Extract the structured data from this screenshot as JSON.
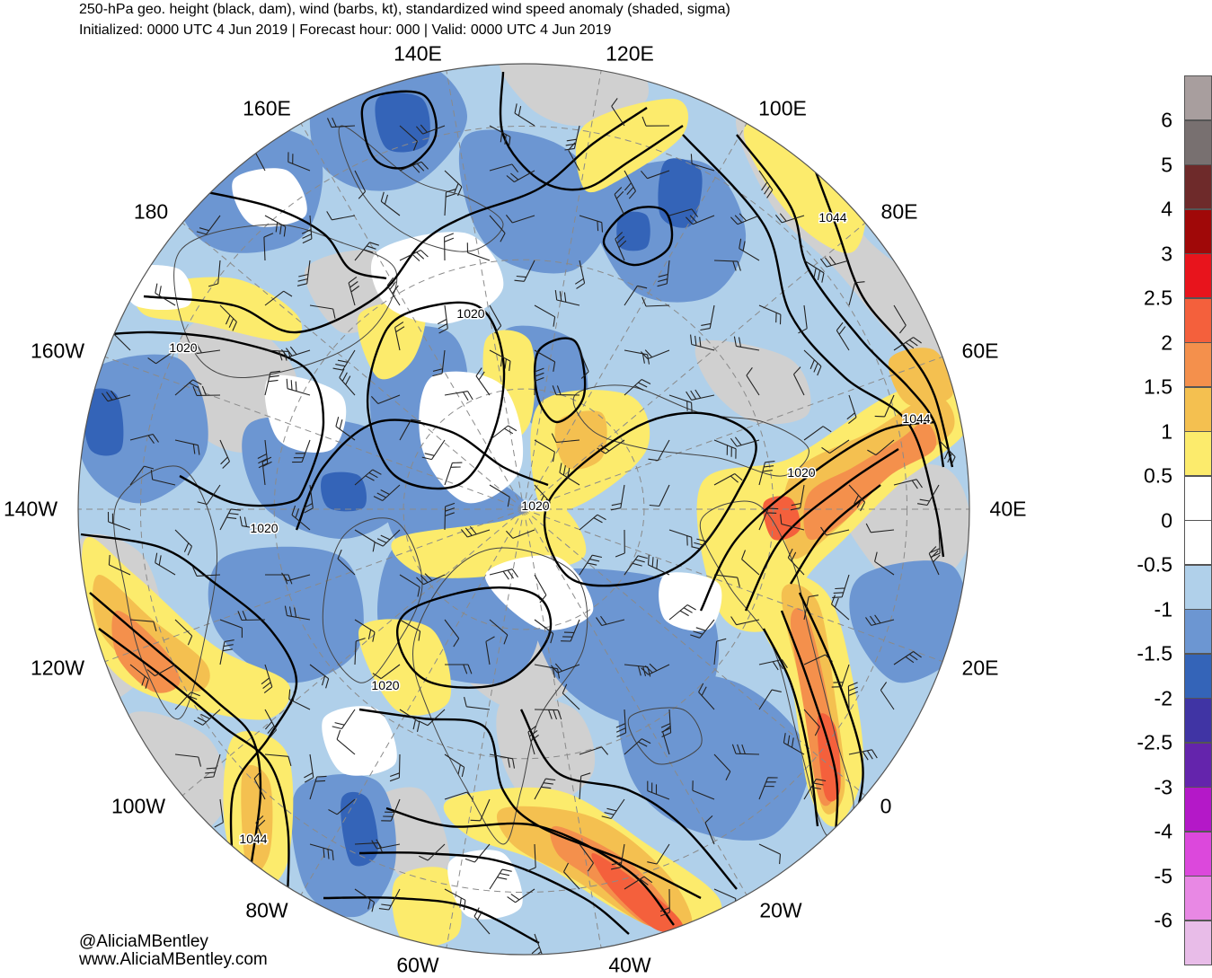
{
  "title": {
    "line1": "250-hPa geo. height (black, dam), wind (barbs, kt), standardized wind speed anomaly (shaded, sigma)",
    "line2": "Initialized: 0000 UTC 4 Jun 2019 | Forecast hour: 000 | Valid: 0000 UTC 4 Jun 2019"
  },
  "longitude_labels": [
    "140E",
    "120E",
    "160E",
    "100E",
    "180",
    "80E",
    "160W",
    "60E",
    "140W",
    "40E",
    "120W",
    "20E",
    "100W",
    "0",
    "80W",
    "20W",
    "60W",
    "40W"
  ],
  "contour_labels": [
    "1020",
    "1020",
    "1020",
    "1020",
    "1020",
    "1020",
    "1044",
    "1044",
    "1044"
  ],
  "credits": {
    "handle": "@AliciaMBentley",
    "website": "www.AliciaMBentley.com"
  },
  "colorbar": {
    "labels": [
      "6",
      "5",
      "4",
      "3",
      "2.5",
      "2",
      "1.5",
      "1",
      "0.5",
      "0",
      "-0.5",
      "-1",
      "-1.5",
      "-2",
      "-2.5",
      "-3",
      "-4",
      "-5",
      "-6"
    ],
    "colors": [
      "#a89e9e",
      "#787070",
      "#6e2a2a",
      "#a00808",
      "#e8141c",
      "#f4603c",
      "#f4904c",
      "#f4c050",
      "#fceb6c",
      "#ffffff",
      "#ffffff",
      "#b0d0ea",
      "#6c96d2",
      "#3464b8",
      "#4034a4",
      "#6424ac",
      "#b418c8",
      "#dc48dc",
      "#e888e4",
      "#e8bce8"
    ]
  },
  "shading_colors": {
    "gray": "#d0d0d0",
    "light_blue": "#b0d0ea",
    "mid_blue": "#6c96d2",
    "dark_blue": "#3464b8",
    "yellow": "#fceb6c",
    "light_orange": "#f4c050",
    "orange": "#f4904c",
    "red_orange": "#f4603c"
  }
}
